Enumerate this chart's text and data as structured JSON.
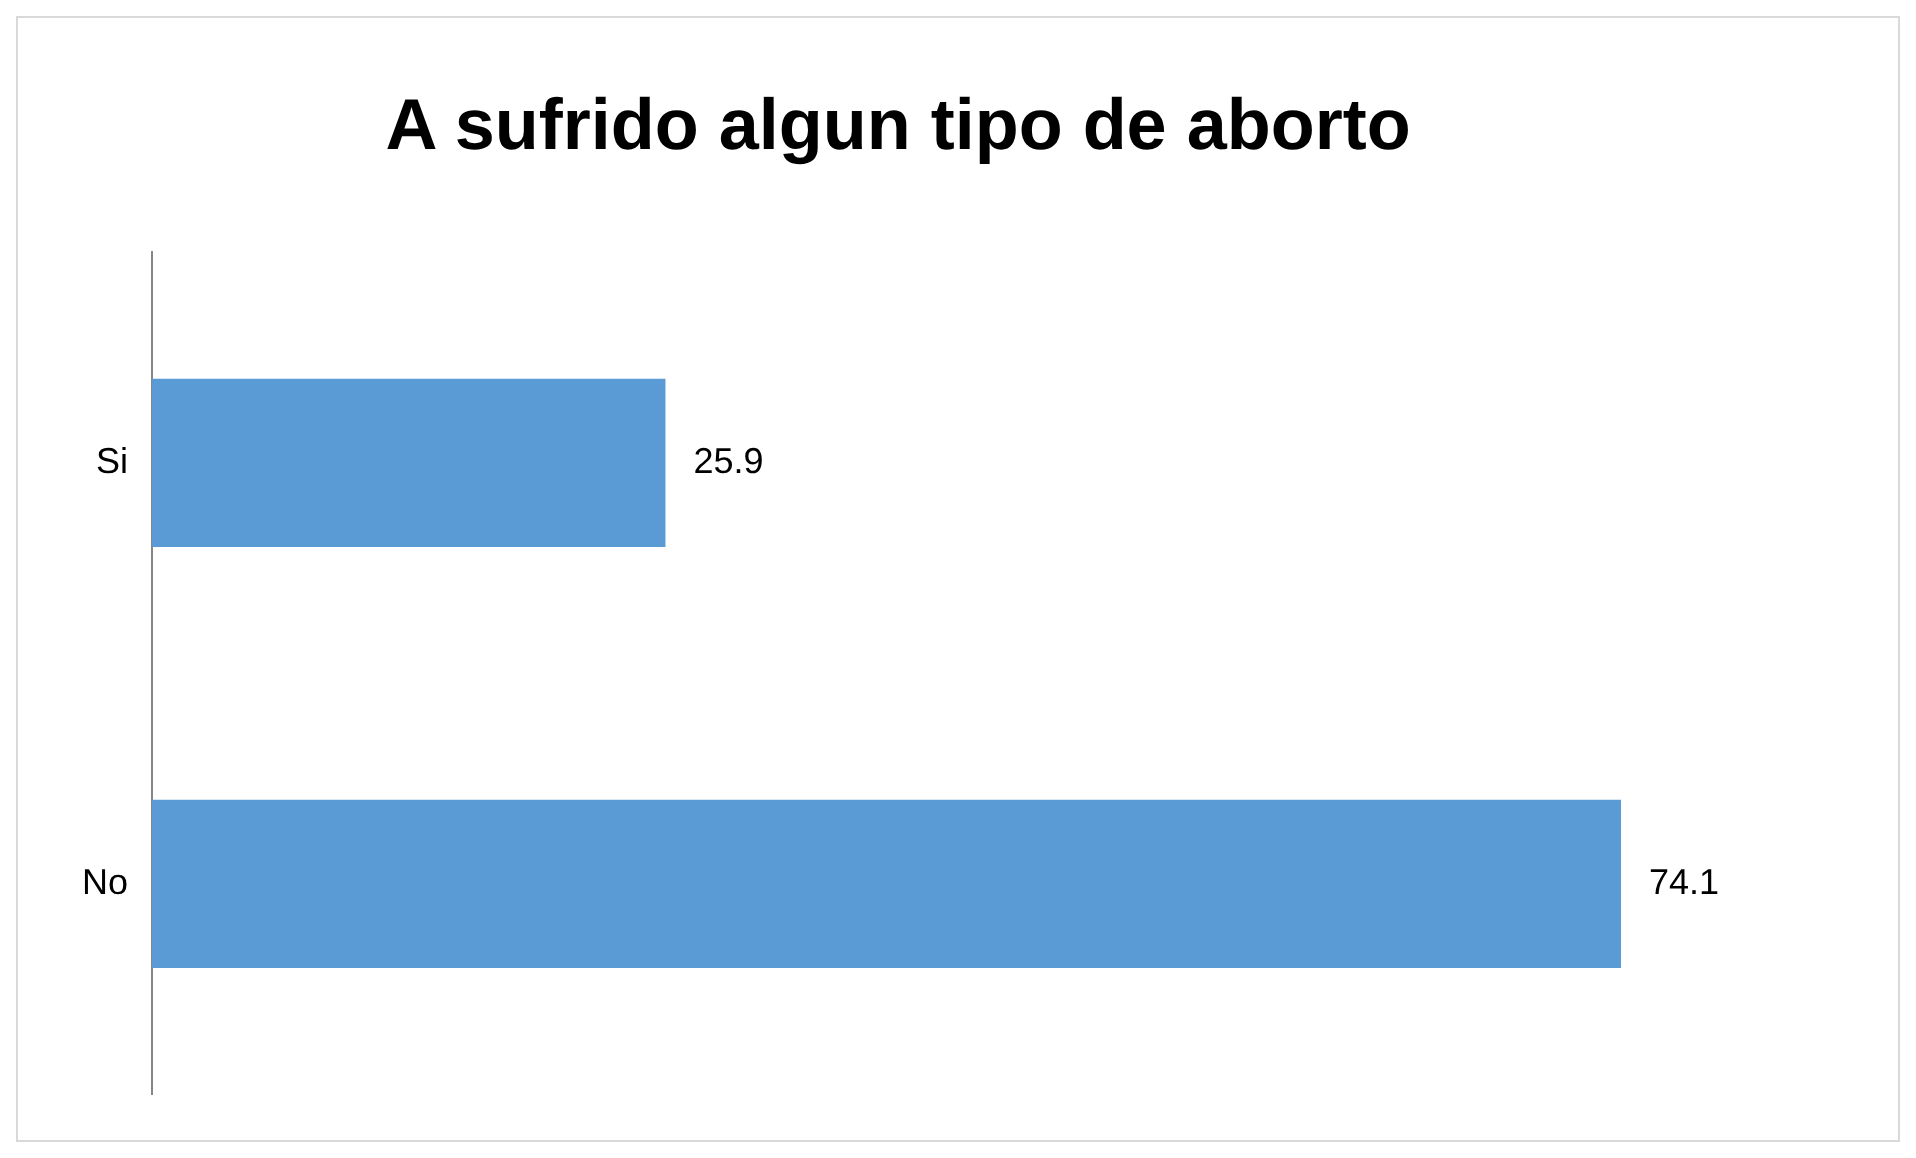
{
  "chart_data": {
    "type": "bar",
    "orientation": "horizontal",
    "title": "A sufrido algun tipo de aborto",
    "categories": [
      "Si",
      "No"
    ],
    "values": [
      25.9,
      74.1
    ],
    "color": "#5b9bd5",
    "tick_labels": "y",
    "data_labels": true
  }
}
